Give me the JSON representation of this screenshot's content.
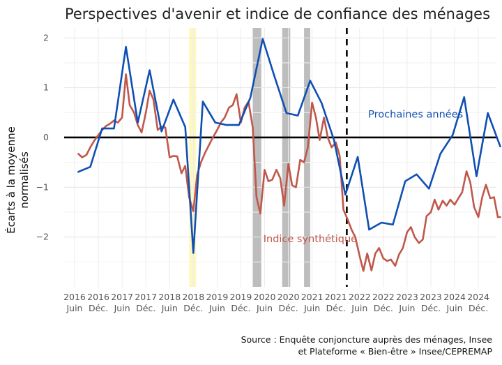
{
  "chart_data": {
    "type": "line",
    "title": "Perspectives d'avenir et indice de confiance des ménages",
    "ylabel_lines": [
      "Écarts à la moyenne",
      "normalisés"
    ],
    "source_lines": [
      "Source : Enquête conjoncture auprès des ménages, Insee",
      "et Plateforme « Bien-être » Insee/CEPREMAP"
    ],
    "ylim": [
      -3,
      2.2
    ],
    "yticks": [
      -2,
      -1,
      0,
      1,
      2
    ],
    "xlim": [
      2016.2,
      2025.3
    ],
    "x_ticks": [
      {
        "x": 2016.42,
        "year": "2016",
        "half": "Juin"
      },
      {
        "x": 2016.92,
        "year": "2016",
        "half": "Déc."
      },
      {
        "x": 2017.42,
        "year": "2017",
        "half": "Juin"
      },
      {
        "x": 2017.92,
        "year": "2017",
        "half": "Déc."
      },
      {
        "x": 2018.42,
        "year": "2018",
        "half": "Juin"
      },
      {
        "x": 2018.92,
        "year": "2018",
        "half": "Déc."
      },
      {
        "x": 2019.42,
        "year": "2019",
        "half": "Juin"
      },
      {
        "x": 2019.92,
        "year": "2019",
        "half": "Déc."
      },
      {
        "x": 2020.42,
        "year": "2020",
        "half": "Juin"
      },
      {
        "x": 2020.92,
        "year": "2020",
        "half": "Déc."
      },
      {
        "x": 2021.42,
        "year": "2021",
        "half": "Juin"
      },
      {
        "x": 2021.92,
        "year": "2021",
        "half": "Déc."
      },
      {
        "x": 2022.42,
        "year": "2022",
        "half": "Juin"
      },
      {
        "x": 2022.92,
        "year": "2022",
        "half": "Déc."
      },
      {
        "x": 2023.42,
        "year": "2023",
        "half": "Juin"
      },
      {
        "x": 2023.92,
        "year": "2023",
        "half": "Déc."
      },
      {
        "x": 2024.42,
        "year": "2024",
        "half": "Juin"
      },
      {
        "x": 2024.92,
        "year": "2024",
        "half": "Déc."
      }
    ],
    "shaded_periods": [
      {
        "start": 2018.83,
        "end": 2018.98,
        "color": "#fff7c0"
      },
      {
        "start": 2020.17,
        "end": 2020.35,
        "color": "#bdbdbd"
      },
      {
        "start": 2020.79,
        "end": 2020.96,
        "color": "#bdbdbd"
      },
      {
        "start": 2021.25,
        "end": 2021.38,
        "color": "#bdbdbd"
      }
    ],
    "vline": {
      "x": 2022.15,
      "style": "dashed",
      "color": "#000000"
    },
    "series": [
      {
        "name": "Prochaines années",
        "color": "#0f4fb3",
        "points": [
          [
            2016.5,
            -0.69
          ],
          [
            2016.75,
            -0.59
          ],
          [
            2017.0,
            0.18
          ],
          [
            2017.25,
            0.18
          ],
          [
            2017.5,
            1.82
          ],
          [
            2017.75,
            0.3
          ],
          [
            2018.0,
            1.35
          ],
          [
            2018.25,
            0.12
          ],
          [
            2018.5,
            0.76
          ],
          [
            2018.75,
            0.21
          ],
          [
            2018.92,
            -2.32
          ],
          [
            2019.12,
            0.72
          ],
          [
            2019.38,
            0.3
          ],
          [
            2019.62,
            0.25
          ],
          [
            2019.88,
            0.25
          ],
          [
            2020.12,
            0.8
          ],
          [
            2020.38,
            1.98
          ],
          [
            2020.62,
            1.25
          ],
          [
            2020.88,
            0.49
          ],
          [
            2021.12,
            0.44
          ],
          [
            2021.38,
            1.14
          ],
          [
            2021.62,
            0.69
          ],
          [
            2021.88,
            -0.05
          ],
          [
            2022.12,
            -1.15
          ],
          [
            2022.38,
            -0.39
          ],
          [
            2022.62,
            -1.85
          ],
          [
            2022.88,
            -1.71
          ],
          [
            2023.12,
            -1.75
          ],
          [
            2023.38,
            -0.88
          ],
          [
            2023.62,
            -0.74
          ],
          [
            2023.88,
            -1.03
          ],
          [
            2024.12,
            -0.33
          ],
          [
            2024.38,
            0.05
          ],
          [
            2024.62,
            0.81
          ],
          [
            2024.88,
            -0.78
          ],
          [
            2025.12,
            0.49
          ],
          [
            2025.38,
            -0.18
          ]
        ]
      },
      {
        "name": "Indice synthétique",
        "color": "#c0574b",
        "points": [
          [
            2016.5,
            -0.33
          ],
          [
            2016.58,
            -0.4
          ],
          [
            2016.67,
            -0.35
          ],
          [
            2016.75,
            -0.2
          ],
          [
            2016.83,
            -0.07
          ],
          [
            2016.92,
            0.05
          ],
          [
            2017.0,
            0.15
          ],
          [
            2017.08,
            0.23
          ],
          [
            2017.17,
            0.28
          ],
          [
            2017.25,
            0.34
          ],
          [
            2017.33,
            0.3
          ],
          [
            2017.42,
            0.4
          ],
          [
            2017.5,
            1.27
          ],
          [
            2017.58,
            0.65
          ],
          [
            2017.67,
            0.5
          ],
          [
            2017.75,
            0.25
          ],
          [
            2017.83,
            0.1
          ],
          [
            2017.92,
            0.5
          ],
          [
            2018.0,
            0.94
          ],
          [
            2018.08,
            0.76
          ],
          [
            2018.17,
            0.15
          ],
          [
            2018.25,
            0.22
          ],
          [
            2018.33,
            0.2
          ],
          [
            2018.42,
            -0.4
          ],
          [
            2018.5,
            -0.37
          ],
          [
            2018.58,
            -0.38
          ],
          [
            2018.67,
            -0.72
          ],
          [
            2018.75,
            -0.57
          ],
          [
            2018.83,
            -1.2
          ],
          [
            2018.92,
            -1.48
          ],
          [
            2019.0,
            -0.75
          ],
          [
            2019.08,
            -0.5
          ],
          [
            2019.17,
            -0.3
          ],
          [
            2019.25,
            -0.15
          ],
          [
            2019.33,
            0.0
          ],
          [
            2019.42,
            0.15
          ],
          [
            2019.5,
            0.3
          ],
          [
            2019.58,
            0.4
          ],
          [
            2019.67,
            0.6
          ],
          [
            2019.75,
            0.65
          ],
          [
            2019.83,
            0.87
          ],
          [
            2019.92,
            0.3
          ],
          [
            2020.0,
            0.6
          ],
          [
            2020.08,
            0.72
          ],
          [
            2020.17,
            0.2
          ],
          [
            2020.25,
            -1.2
          ],
          [
            2020.33,
            -1.53
          ],
          [
            2020.42,
            -0.65
          ],
          [
            2020.5,
            -0.88
          ],
          [
            2020.58,
            -0.85
          ],
          [
            2020.67,
            -0.65
          ],
          [
            2020.75,
            -0.82
          ],
          [
            2020.83,
            -1.37
          ],
          [
            2020.92,
            -0.53
          ],
          [
            2021.0,
            -0.96
          ],
          [
            2021.08,
            -1.0
          ],
          [
            2021.17,
            -0.45
          ],
          [
            2021.25,
            -0.5
          ],
          [
            2021.33,
            -0.2
          ],
          [
            2021.42,
            0.7
          ],
          [
            2021.5,
            0.4
          ],
          [
            2021.58,
            -0.05
          ],
          [
            2021.67,
            0.4
          ],
          [
            2021.75,
            0.0
          ],
          [
            2021.83,
            -0.2
          ],
          [
            2021.92,
            -0.1
          ],
          [
            2022.0,
            -0.37
          ],
          [
            2022.08,
            -1.45
          ],
          [
            2022.17,
            -1.65
          ],
          [
            2022.25,
            -1.85
          ],
          [
            2022.33,
            -2.0
          ],
          [
            2022.42,
            -2.38
          ],
          [
            2022.5,
            -2.68
          ],
          [
            2022.58,
            -2.33
          ],
          [
            2022.67,
            -2.67
          ],
          [
            2022.75,
            -2.33
          ],
          [
            2022.83,
            -2.22
          ],
          [
            2022.92,
            -2.43
          ],
          [
            2023.0,
            -2.48
          ],
          [
            2023.08,
            -2.45
          ],
          [
            2023.17,
            -2.58
          ],
          [
            2023.25,
            -2.35
          ],
          [
            2023.33,
            -2.22
          ],
          [
            2023.42,
            -1.9
          ],
          [
            2023.5,
            -1.8
          ],
          [
            2023.58,
            -2.0
          ],
          [
            2023.67,
            -2.12
          ],
          [
            2023.75,
            -2.05
          ],
          [
            2023.83,
            -1.58
          ],
          [
            2023.92,
            -1.5
          ],
          [
            2024.0,
            -1.25
          ],
          [
            2024.08,
            -1.45
          ],
          [
            2024.17,
            -1.27
          ],
          [
            2024.25,
            -1.37
          ],
          [
            2024.33,
            -1.25
          ],
          [
            2024.42,
            -1.35
          ],
          [
            2024.5,
            -1.22
          ],
          [
            2024.58,
            -1.1
          ],
          [
            2024.67,
            -0.68
          ],
          [
            2024.75,
            -0.9
          ],
          [
            2024.83,
            -1.4
          ],
          [
            2024.92,
            -1.6
          ],
          [
            2025.0,
            -1.2
          ],
          [
            2025.08,
            -0.95
          ],
          [
            2025.17,
            -1.22
          ],
          [
            2025.25,
            -1.2
          ],
          [
            2025.33,
            -1.6
          ],
          [
            2025.38,
            -1.6
          ]
        ]
      }
    ],
    "annotations": [
      {
        "series": 0,
        "text": "Prochaines années",
        "x": 2023.6,
        "y": 0.47
      },
      {
        "series": 1,
        "text": "Indice synthétique",
        "x": 2021.38,
        "y": -2.03
      }
    ],
    "grid": true,
    "legend": "none",
    "zero_line": true
  }
}
